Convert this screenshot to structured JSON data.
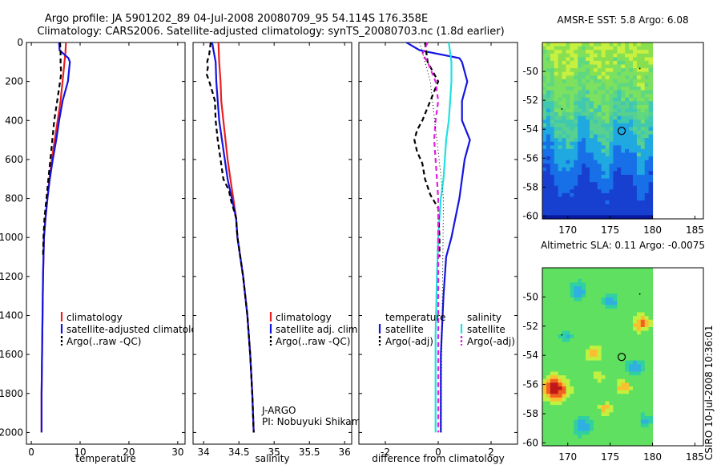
{
  "title_line1": "Argo profile: JA 5901202_89 04-Jul-2008 20080709_95 54.114S 176.358E",
  "title_line2": "Climatology: CARS2006. Satellite-adjusted climatology: synTS_20080703.nc (1.8d earlier)",
  "footer_stamp": "CSIRO 10-Jul-2008 10:36:01",
  "colors": {
    "red": "#e82020",
    "blue": "#1414e0",
    "black": "#000000",
    "cyan": "#20e0e0",
    "magenta": "#e020e0"
  },
  "chart_data": [
    {
      "id": "temperature",
      "type": "line",
      "xlabel": "temperature",
      "xlim": [
        -1,
        31.5
      ],
      "ylim": [
        0,
        2060
      ],
      "xticks": [
        0,
        10,
        20,
        30
      ],
      "yticks": [
        0,
        200,
        400,
        600,
        800,
        1000,
        1200,
        1400,
        1600,
        1800,
        2000
      ],
      "legend": [
        "climatology",
        "satellite-adjusted climatology",
        "Argo(..raw -QC)"
      ],
      "series": [
        {
          "name": "climatology",
          "color": "red",
          "dash": false,
          "points": [
            [
              7.1,
              0
            ],
            [
              7.0,
              50
            ],
            [
              6.8,
              100
            ],
            [
              6.4,
              200
            ],
            [
              6.0,
              300
            ],
            [
              5.4,
              400
            ],
            [
              4.8,
              500
            ],
            [
              4.2,
              600
            ],
            [
              3.7,
              700
            ],
            [
              3.3,
              800
            ],
            [
              2.9,
              900
            ],
            [
              2.6,
              1000
            ],
            [
              2.4,
              1200
            ],
            [
              2.3,
              1400
            ],
            [
              2.2,
              1600
            ],
            [
              2.1,
              1800
            ],
            [
              2.1,
              2000
            ]
          ]
        },
        {
          "name": "satellite-adjusted climatology",
          "color": "blue",
          "dash": false,
          "points": [
            [
              5.7,
              0
            ],
            [
              5.8,
              40
            ],
            [
              7.6,
              80
            ],
            [
              7.9,
              100
            ],
            [
              7.5,
              200
            ],
            [
              6.4,
              300
            ],
            [
              5.7,
              400
            ],
            [
              5.1,
              500
            ],
            [
              4.4,
              600
            ],
            [
              3.8,
              700
            ],
            [
              3.3,
              800
            ],
            [
              2.9,
              900
            ],
            [
              2.6,
              1000
            ],
            [
              2.4,
              1200
            ],
            [
              2.3,
              1400
            ],
            [
              2.2,
              1600
            ],
            [
              2.1,
              1800
            ],
            [
              2.1,
              2000
            ]
          ]
        },
        {
          "name": "Argo(..raw -QC)",
          "color": "black",
          "dash": true,
          "points": [
            [
              5.9,
              0
            ],
            [
              6.0,
              50
            ],
            [
              6.0,
              100
            ],
            [
              6.1,
              160
            ],
            [
              5.9,
              200
            ],
            [
              5.3,
              300
            ],
            [
              4.7,
              400
            ],
            [
              4.3,
              500
            ],
            [
              3.9,
              600
            ],
            [
              3.5,
              700
            ],
            [
              3.1,
              800
            ],
            [
              2.7,
              900
            ],
            [
              2.5,
              1000
            ],
            [
              2.4,
              1100
            ]
          ]
        }
      ],
      "annotations": []
    },
    {
      "id": "salinity",
      "type": "line",
      "xlabel": "salinity",
      "xlim": [
        33.85,
        36.1
      ],
      "ylim": [
        0,
        2060
      ],
      "xticks": [
        34,
        34.5,
        35,
        35.5,
        36
      ],
      "yticks": [
        0,
        200,
        400,
        600,
        800,
        1000,
        1200,
        1400,
        1600,
        1800,
        2000
      ],
      "legend": [
        "climatology",
        "satellite adj. clim.",
        "Argo(..raw -QC)"
      ],
      "series": [
        {
          "name": "climatology",
          "color": "red",
          "dash": false,
          "points": [
            [
              34.21,
              0
            ],
            [
              34.22,
              100
            ],
            [
              34.24,
              200
            ],
            [
              34.25,
              300
            ],
            [
              34.28,
              400
            ],
            [
              34.31,
              500
            ],
            [
              34.34,
              600
            ],
            [
              34.38,
              700
            ],
            [
              34.42,
              800
            ],
            [
              34.46,
              900
            ],
            [
              34.48,
              1000
            ],
            [
              34.56,
              1200
            ],
            [
              34.62,
              1400
            ],
            [
              34.66,
              1600
            ],
            [
              34.69,
              1800
            ],
            [
              34.71,
              2000
            ]
          ]
        },
        {
          "name": "satellite adj. clim.",
          "color": "blue",
          "dash": false,
          "points": [
            [
              34.12,
              0
            ],
            [
              34.14,
              40
            ],
            [
              34.15,
              60
            ],
            [
              34.17,
              100
            ],
            [
              34.18,
              200
            ],
            [
              34.2,
              300
            ],
            [
              34.22,
              400
            ],
            [
              34.26,
              500
            ],
            [
              34.3,
              600
            ],
            [
              34.34,
              700
            ],
            [
              34.4,
              800
            ],
            [
              34.46,
              900
            ],
            [
              34.48,
              1000
            ],
            [
              34.56,
              1200
            ],
            [
              34.62,
              1400
            ],
            [
              34.66,
              1600
            ],
            [
              34.69,
              1800
            ],
            [
              34.71,
              2000
            ]
          ]
        },
        {
          "name": "Argo(..raw -QC)",
          "color": "black",
          "dash": true,
          "points": [
            [
              34.1,
              0
            ],
            [
              34.08,
              60
            ],
            [
              34.05,
              100
            ],
            [
              34.06,
              130
            ],
            [
              34.04,
              160
            ],
            [
              34.08,
              200
            ],
            [
              34.13,
              260
            ],
            [
              34.16,
              300
            ],
            [
              34.17,
              400
            ],
            [
              34.2,
              500
            ],
            [
              34.24,
              600
            ],
            [
              34.28,
              700
            ],
            [
              34.36,
              760
            ],
            [
              34.38,
              800
            ],
            [
              34.42,
              850
            ],
            [
              34.46,
              900
            ],
            [
              34.48,
              1000
            ],
            [
              34.56,
              1200
            ],
            [
              34.62,
              1400
            ],
            [
              34.66,
              1600
            ],
            [
              34.69,
              1800
            ],
            [
              34.71,
              2000
            ]
          ]
        }
      ],
      "annotations": [
        "J-ARGO",
        "PI: Nobuyuki Shikama"
      ]
    },
    {
      "id": "difference",
      "type": "line",
      "xlabel": "difference from climatology",
      "xlim": [
        -3,
        3
      ],
      "ylim": [
        0,
        2060
      ],
      "xticks": [
        -2,
        0,
        2
      ],
      "yticks": [
        0,
        200,
        400,
        600,
        800,
        1000,
        1200,
        1400,
        1600,
        1800,
        2000
      ],
      "legend_headers": [
        "temperature",
        "salinity"
      ],
      "legend": [
        "satellite",
        "Argo(-adj)",
        "satellite",
        "Argo(-adj)"
      ],
      "series": [
        {
          "name": "temperature satellite",
          "color": "blue",
          "dash": false,
          "points": [
            [
              -1.2,
              0
            ],
            [
              -0.7,
              40
            ],
            [
              0.8,
              80
            ],
            [
              0.9,
              100
            ],
            [
              1.1,
              200
            ],
            [
              0.9,
              300
            ],
            [
              0.9,
              400
            ],
            [
              1.2,
              500
            ],
            [
              1.0,
              600
            ],
            [
              0.9,
              700
            ],
            [
              0.8,
              800
            ],
            [
              0.5,
              1000
            ],
            [
              0.3,
              1100
            ],
            [
              0.2,
              1300
            ],
            [
              0.1,
              1600
            ],
            [
              0.1,
              1800
            ],
            [
              0.1,
              2000
            ]
          ]
        },
        {
          "name": "salinity satellite",
          "color": "cyan",
          "dash": false,
          "points": [
            [
              0.4,
              0
            ],
            [
              0.5,
              100
            ],
            [
              0.5,
              200
            ],
            [
              0.45,
              300
            ],
            [
              0.4,
              400
            ],
            [
              0.3,
              500
            ],
            [
              0.25,
              600
            ],
            [
              0.2,
              700
            ],
            [
              0.1,
              800
            ],
            [
              0.0,
              1000
            ],
            [
              -0.05,
              1200
            ],
            [
              -0.1,
              1500
            ],
            [
              -0.1,
              1800
            ],
            [
              -0.1,
              2000
            ]
          ]
        },
        {
          "name": "temperature Argo(-adj)",
          "color": "black",
          "dash": true,
          "points": [
            [
              -0.5,
              0
            ],
            [
              -0.4,
              100
            ],
            [
              0.0,
              200
            ],
            [
              -0.3,
              300
            ],
            [
              -0.6,
              400
            ],
            [
              -0.8,
              450
            ],
            [
              -0.9,
              500
            ],
            [
              -0.8,
              560
            ],
            [
              -0.6,
              620
            ],
            [
              -0.5,
              700
            ],
            [
              -0.3,
              780
            ],
            [
              0.0,
              850
            ],
            [
              0.05,
              1000
            ],
            [
              0.05,
              1100
            ]
          ]
        },
        {
          "name": "salinity Argo(-adj)",
          "color": "magenta",
          "dash": true,
          "points": [
            [
              -0.4,
              0
            ],
            [
              -0.6,
              60
            ],
            [
              -0.4,
              100
            ],
            [
              -0.1,
              200
            ],
            [
              0.0,
              300
            ],
            [
              -0.1,
              400
            ],
            [
              -0.15,
              500
            ],
            [
              -0.1,
              600
            ],
            [
              -0.05,
              700
            ],
            [
              0.0,
              800
            ],
            [
              0.0,
              1000
            ],
            [
              0.0,
              1200
            ],
            [
              0.0,
              1600
            ],
            [
              0.0,
              2000
            ]
          ]
        },
        {
          "name": "salinity dotted",
          "color": "black",
          "dash": "dot",
          "points": [
            [
              -0.7,
              0
            ],
            [
              -0.3,
              200
            ],
            [
              0.2,
              800
            ],
            [
              0.1,
              2000
            ]
          ]
        }
      ],
      "annotations": []
    },
    {
      "id": "sst_map",
      "type": "heatmap",
      "title": "AMSR-E SST: 5.8  Argo: 6.08",
      "xlim": [
        167,
        186
      ],
      "ylim": [
        -60.2,
        -48
      ],
      "xticks": [
        170,
        175,
        180,
        185
      ],
      "yticks": [
        -50,
        -52,
        -54,
        -56,
        -58,
        -60
      ],
      "data_xrange": [
        167,
        180
      ],
      "argo_position": [
        176.358,
        -54.114
      ]
    },
    {
      "id": "sla_map",
      "type": "heatmap",
      "title": "Altimetric SLA: 0.11  Argo: -0.0075",
      "xlim": [
        167,
        186
      ],
      "ylim": [
        -60.2,
        -48
      ],
      "xticks": [
        170,
        175,
        180,
        185
      ],
      "yticks": [
        -50,
        -52,
        -54,
        -56,
        -58,
        -60
      ],
      "data_xrange": [
        167,
        180
      ],
      "argo_position": [
        176.358,
        -54.114
      ]
    }
  ]
}
